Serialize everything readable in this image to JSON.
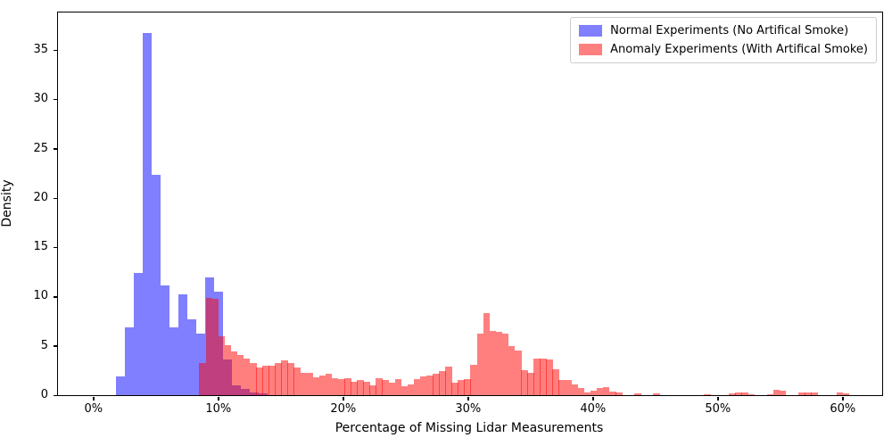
{
  "chart_data": {
    "type": "histogram",
    "title": "",
    "xlabel": "Percentage of Missing Lidar Measurements",
    "ylabel": "Density",
    "x_ticks": [
      "0%",
      "10%",
      "20%",
      "30%",
      "40%",
      "50%",
      "60%"
    ],
    "x_tick_values": [
      0,
      10,
      20,
      30,
      40,
      50,
      60
    ],
    "y_ticks": [
      0,
      5,
      10,
      15,
      20,
      25,
      30,
      35
    ],
    "xlim_pct": [
      -2.8,
      63.2
    ],
    "ylim": [
      0,
      38.8
    ],
    "grid": false,
    "legend_position": "upper right",
    "series": [
      {
        "name": "Normal Experiments (No Artifical Smoke)",
        "color": "rgba(0,0,255,0.5)",
        "bin_start_pct": 1.8,
        "bin_width_pct": 0.715,
        "densities": [
          1.9,
          6.9,
          12.4,
          36.7,
          22.3,
          11.1,
          6.9,
          10.2,
          7.7,
          6.2,
          11.9,
          10.5,
          3.6,
          1.0,
          0.6,
          0.3,
          0.15
        ]
      },
      {
        "name": "Anomaly Experiments (With Artifical Smoke)",
        "color": "rgba(255,0,0,0.5)",
        "bin_start_pct": 8.51,
        "bin_width_pct": 0.505,
        "densities": [
          3.3,
          9.9,
          9.8,
          6.0,
          5.1,
          4.45,
          4.1,
          3.75,
          3.3,
          2.8,
          3.0,
          3.0,
          3.3,
          3.5,
          3.3,
          2.8,
          2.25,
          2.25,
          1.8,
          2.0,
          2.2,
          1.7,
          1.6,
          1.7,
          1.4,
          1.5,
          1.35,
          1.0,
          1.7,
          1.5,
          1.3,
          1.65,
          0.9,
          1.05,
          1.6,
          1.9,
          2.0,
          2.2,
          2.4,
          2.9,
          1.3,
          1.5,
          1.65,
          3.1,
          6.2,
          8.35,
          6.5,
          6.4,
          6.2,
          5.0,
          4.5,
          2.5,
          2.3,
          3.75,
          3.7,
          3.65,
          2.65,
          1.5,
          1.5,
          1.05,
          0.7,
          0.3,
          0.45,
          0.7,
          0.85,
          0.4,
          0.25,
          0,
          0,
          0.15,
          0,
          0,
          0.15,
          0,
          0,
          0,
          0,
          0,
          0,
          0,
          0.1,
          0,
          0,
          0,
          0.2,
          0.25,
          0.25,
          0.1,
          0,
          0,
          0.1,
          0.55,
          0.45,
          0,
          0,
          0.25,
          0.25,
          0.3,
          0,
          0,
          0,
          0.3,
          0.15
        ]
      }
    ]
  },
  "legend": {
    "items": [
      {
        "label": "Normal Experiments (No Artifical Smoke)"
      },
      {
        "label": "Anomaly Experiments (With Artifical Smoke)"
      }
    ]
  }
}
